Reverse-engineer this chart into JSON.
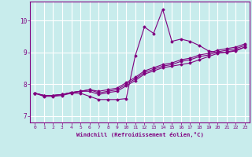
{
  "title": "",
  "xlabel": "Windchill (Refroidissement éolien,°C)",
  "ylabel": "",
  "bg_color": "#c8ecec",
  "line_color": "#800080",
  "grid_color": "#ffffff",
  "xlim": [
    -0.5,
    23.5
  ],
  "ylim": [
    6.8,
    10.6
  ],
  "xticks": [
    0,
    1,
    2,
    3,
    4,
    5,
    6,
    7,
    8,
    9,
    10,
    11,
    12,
    13,
    14,
    15,
    16,
    17,
    18,
    19,
    20,
    21,
    22,
    23
  ],
  "yticks": [
    7,
    8,
    9,
    10
  ],
  "series": [
    [
      7.72,
      7.62,
      7.62,
      7.65,
      7.72,
      7.72,
      7.62,
      7.52,
      7.52,
      7.52,
      7.55,
      8.9,
      9.8,
      9.6,
      10.35,
      9.35,
      9.42,
      9.35,
      9.22,
      9.05,
      9.0,
      9.0,
      9.05,
      9.17
    ],
    [
      7.72,
      7.65,
      7.65,
      7.68,
      7.74,
      7.78,
      7.78,
      7.68,
      7.74,
      7.78,
      7.95,
      8.12,
      8.32,
      8.42,
      8.52,
      8.57,
      8.62,
      8.67,
      8.77,
      8.87,
      8.97,
      9.02,
      9.07,
      9.17
    ],
    [
      7.72,
      7.65,
      7.65,
      7.68,
      7.74,
      7.78,
      7.83,
      7.73,
      7.78,
      7.83,
      8.0,
      8.17,
      8.37,
      8.47,
      8.57,
      8.62,
      8.72,
      8.77,
      8.87,
      8.92,
      9.02,
      9.07,
      9.12,
      9.22
    ],
    [
      7.72,
      7.65,
      7.65,
      7.68,
      7.74,
      7.78,
      7.83,
      7.78,
      7.83,
      7.88,
      8.05,
      8.22,
      8.42,
      8.52,
      8.62,
      8.67,
      8.77,
      8.82,
      8.92,
      8.97,
      9.07,
      9.12,
      9.17,
      9.27
    ]
  ]
}
